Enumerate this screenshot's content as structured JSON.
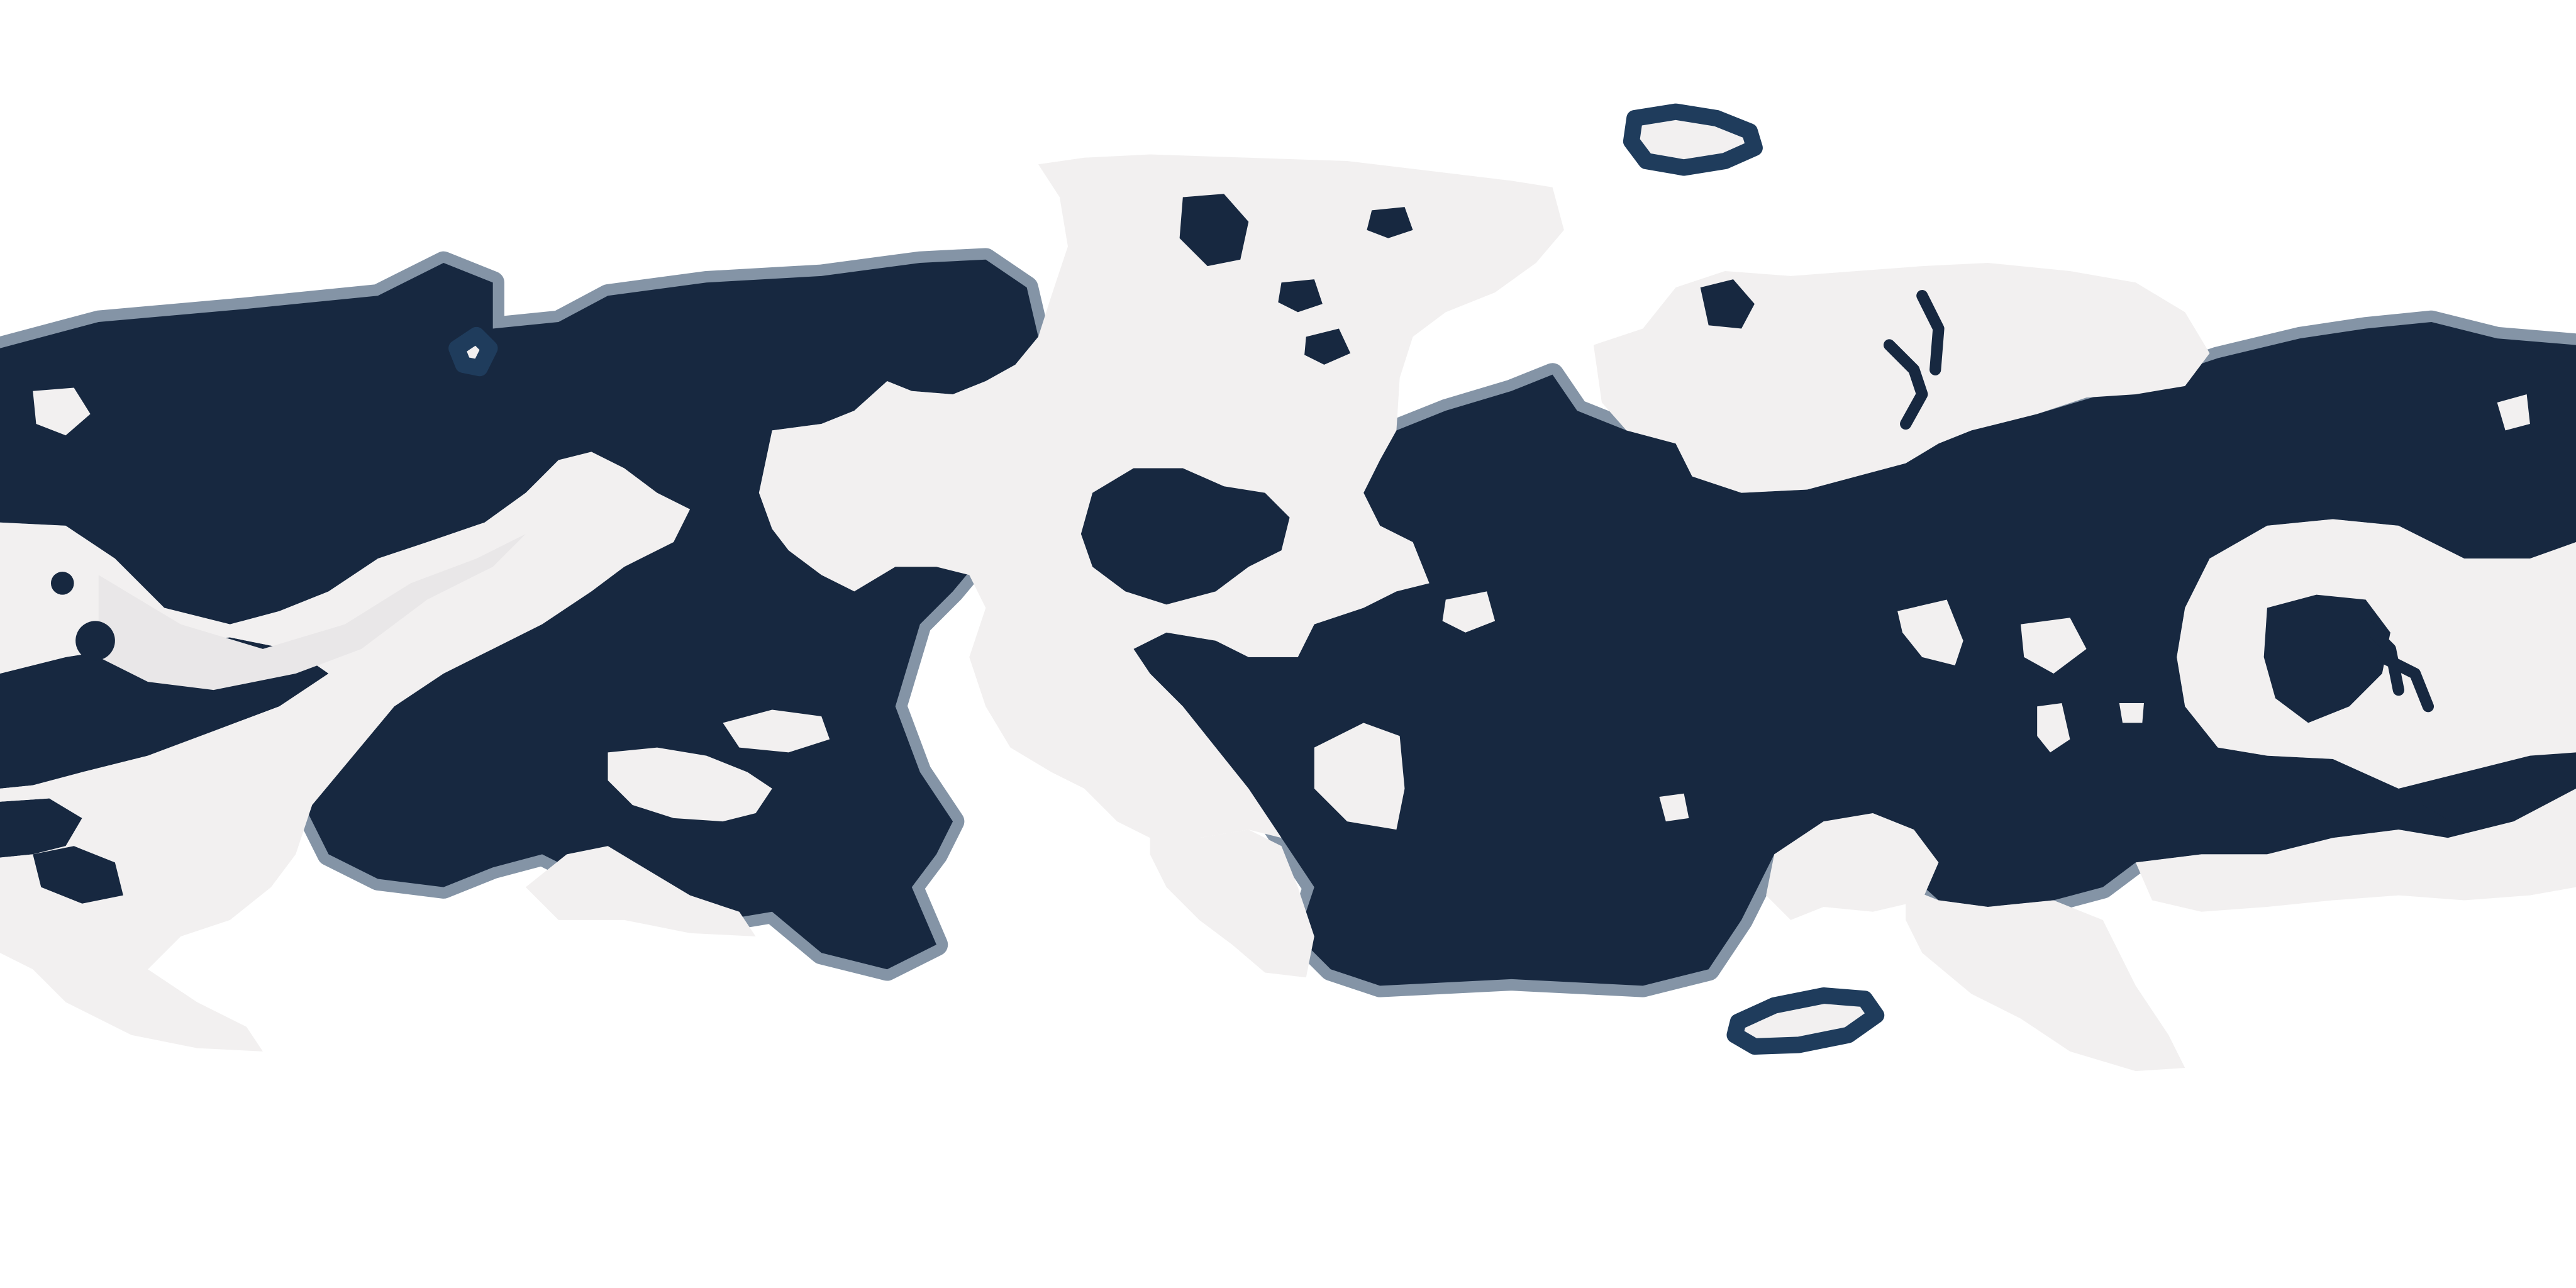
{
  "map": {
    "projection": "equirectangular",
    "colors": {
      "background": "#ffffff",
      "ocean": "#172840",
      "coast": "#1f3c5c",
      "land": "#f2f0f0",
      "land_relief": "#e9e7e8"
    },
    "regions": [
      "ocean-west",
      "ocean-central",
      "ocean-east",
      "continent-west",
      "continent-north",
      "continent-south-central",
      "continent-northeast",
      "continent-east",
      "continent-southeast",
      "island-arctic",
      "island-south"
    ]
  }
}
